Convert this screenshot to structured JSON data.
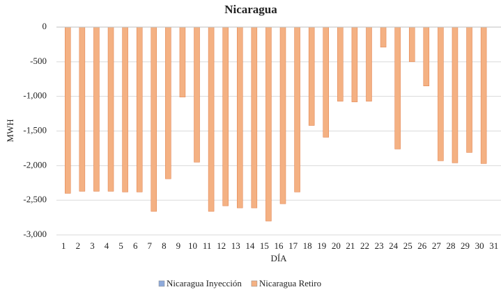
{
  "chart_data": {
    "type": "bar",
    "title": "Nicaragua",
    "x_label": "DÍA",
    "y_label": "MWH",
    "categories": [
      "1",
      "2",
      "3",
      "4",
      "5",
      "6",
      "7",
      "8",
      "9",
      "10",
      "11",
      "12",
      "13",
      "14",
      "15",
      "16",
      "17",
      "18",
      "19",
      "20",
      "21",
      "22",
      "23",
      "24",
      "25",
      "26",
      "27",
      "28",
      "29",
      "30",
      "31"
    ],
    "series": [
      {
        "name": "Nicaragua Inyección",
        "color": "#8eaadb",
        "values": [
          0,
          0,
          0,
          0,
          0,
          0,
          0,
          0,
          0,
          0,
          0,
          0,
          0,
          0,
          0,
          0,
          0,
          0,
          0,
          0,
          0,
          0,
          0,
          0,
          0,
          0,
          0,
          0,
          0,
          0,
          null
        ]
      },
      {
        "name": "Nicaragua Retiro",
        "color": "#f4b183",
        "values": [
          -2400,
          -2370,
          -2370,
          -2370,
          -2380,
          -2380,
          -2660,
          -2190,
          -1010,
          -1950,
          -2660,
          -2580,
          -2610,
          -2610,
          -2800,
          -2550,
          -2380,
          -1420,
          -1590,
          -1070,
          -1080,
          -1070,
          -290,
          -1760,
          -500,
          -850,
          -1930,
          -1960,
          -1810,
          -1970,
          null
        ]
      }
    ],
    "ylim": [
      -3000,
      0
    ],
    "yticks": [
      0,
      -500,
      {
        "value": -1000,
        "label": "-1,000"
      },
      {
        "value": -1500,
        "label": "-1,500"
      },
      {
        "value": -2000,
        "label": "-2,000"
      },
      {
        "value": -2500,
        "label": "-2,500"
      },
      {
        "value": -3000,
        "label": "-3,000"
      }
    ],
    "grid": true,
    "legend": "bottom"
  }
}
